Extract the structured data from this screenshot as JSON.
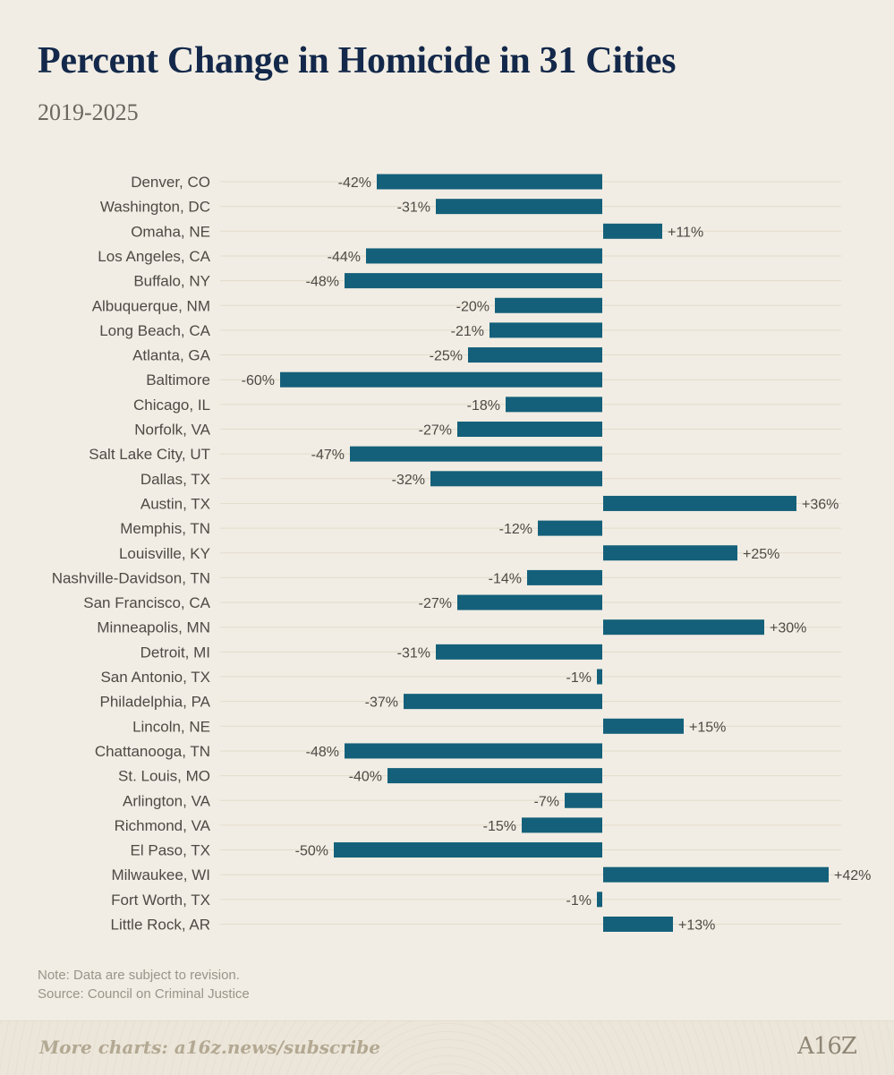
{
  "title": "Percent Change in Homicide in 31 Cities",
  "subtitle": "2019-2025",
  "notes": {
    "note": "Note: Data are subject to revision.",
    "source": "Source: Council on Criminal Justice"
  },
  "footer": {
    "cta": "More charts: a16z.news/subscribe",
    "logo": "A16Z"
  },
  "colors": {
    "bar": "#14607a",
    "gridline": "#e3dccb",
    "background": "#f1ede4"
  },
  "chart_data": {
    "type": "bar",
    "orientation": "horizontal",
    "title": "Percent Change in Homicide in 31 Cities",
    "subtitle": "2019-2025",
    "categories": [
      "Denver, CO",
      "Washington, DC",
      "Omaha, NE",
      "Los Angeles, CA",
      "Buffalo, NY",
      "Albuquerque, NM",
      "Long Beach, CA",
      "Atlanta, GA",
      "Baltimore",
      "Chicago, IL",
      "Norfolk, VA",
      "Salt Lake City, UT",
      "Dallas, TX",
      "Austin, TX",
      "Memphis, TN",
      "Louisville, KY",
      "Nashville-Davidson, TN",
      "San Francisco, CA",
      "Minneapolis, MN",
      "Detroit, MI",
      "San Antonio, TX",
      "Philadelphia, PA",
      "Lincoln, NE",
      "Chattanooga, TN",
      "St. Louis, MO",
      "Arlington, VA",
      "Richmond, VA",
      "El Paso, TX",
      "Milwaukee, WI",
      "Fort Worth, TX",
      "Little Rock, AR"
    ],
    "values": [
      -42,
      -31,
      11,
      -44,
      -48,
      -20,
      -21,
      -25,
      -60,
      -18,
      -27,
      -47,
      -32,
      36,
      -12,
      25,
      -14,
      -27,
      30,
      -31,
      -1,
      -37,
      15,
      -48,
      -40,
      -7,
      -15,
      -50,
      42,
      -1,
      13
    ],
    "value_labels": [
      "-42%",
      "-31%",
      "+11%",
      "-44%",
      "-48%",
      "-20%",
      "-21%",
      "-25%",
      "-60%",
      "-18%",
      "-27%",
      "-47%",
      "-32%",
      "+36%",
      "-12%",
      "+25%",
      "-14%",
      "-27%",
      "+30%",
      "-31%",
      "-1%",
      "-37%",
      "+15%",
      "-48%",
      "-40%",
      "-7%",
      "-15%",
      "-50%",
      "+42%",
      "-1%",
      "+13%"
    ],
    "unit": "%",
    "xlim": [
      -60,
      42
    ],
    "grid": true,
    "legend": "none"
  }
}
